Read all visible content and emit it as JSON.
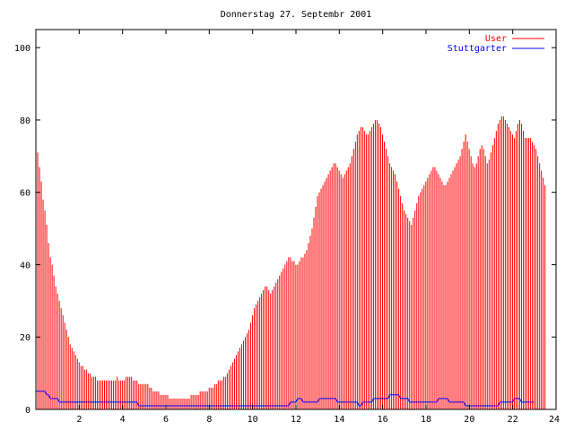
{
  "chart_data": {
    "type": "bar",
    "title": "Donnerstag 27. Septembr 2001",
    "xlim": [
      0,
      24
    ],
    "ylim": [
      0,
      105
    ],
    "x_ticks": [
      2,
      4,
      6,
      8,
      10,
      12,
      14,
      16,
      18,
      20,
      22,
      24
    ],
    "y_ticks": [
      0,
      20,
      40,
      60,
      80,
      100
    ],
    "legend_position": "top-right",
    "grid": false,
    "series": [
      {
        "name": "User",
        "style": "impulses",
        "color": "#ff0000",
        "x_step_hours": 0.0833,
        "values": [
          75,
          71,
          67,
          63,
          58,
          55,
          51,
          46,
          42,
          40,
          37,
          34,
          32,
          30,
          28,
          26,
          24,
          22,
          20,
          18,
          17,
          16,
          15,
          14,
          13,
          12,
          12,
          11,
          11,
          10,
          10,
          9,
          9,
          9,
          8,
          8,
          8,
          8,
          8,
          8,
          8,
          8,
          8,
          8,
          8,
          9,
          8,
          8,
          8,
          8,
          9,
          9,
          9,
          9,
          8,
          8,
          8,
          7,
          7,
          7,
          7,
          7,
          7,
          6,
          6,
          5,
          5,
          5,
          5,
          4,
          4,
          4,
          4,
          4,
          3,
          3,
          3,
          3,
          3,
          3,
          3,
          3,
          3,
          3,
          3,
          3,
          4,
          4,
          4,
          4,
          4,
          5,
          5,
          5,
          5,
          5,
          6,
          6,
          6,
          7,
          7,
          8,
          8,
          8,
          9,
          9,
          10,
          11,
          12,
          13,
          14,
          15,
          16,
          17,
          18,
          19,
          20,
          21,
          22,
          24,
          26,
          28,
          29,
          30,
          31,
          32,
          33,
          34,
          34,
          33,
          32,
          33,
          34,
          35,
          36,
          37,
          38,
          39,
          40,
          41,
          42,
          42,
          41,
          41,
          40,
          40,
          41,
          42,
          42,
          43,
          44,
          46,
          48,
          50,
          53,
          56,
          59,
          60,
          61,
          62,
          63,
          64,
          65,
          66,
          67,
          68,
          68,
          67,
          66,
          65,
          64,
          65,
          66,
          67,
          68,
          70,
          72,
          74,
          76,
          77,
          78,
          78,
          77,
          76,
          76,
          77,
          78,
          79,
          80,
          80,
          79,
          78,
          76,
          74,
          72,
          70,
          68,
          67,
          66,
          65,
          63,
          61,
          59,
          57,
          55,
          54,
          53,
          52,
          51,
          53,
          55,
          57,
          59,
          60,
          61,
          62,
          63,
          64,
          65,
          66,
          67,
          67,
          66,
          65,
          64,
          63,
          62,
          62,
          63,
          64,
          65,
          66,
          67,
          68,
          69,
          70,
          72,
          74,
          76,
          74,
          72,
          70,
          68,
          67,
          68,
          70,
          72,
          73,
          72,
          70,
          68,
          69,
          71,
          73,
          75,
          77,
          79,
          80,
          81,
          81,
          80,
          79,
          78,
          77,
          76,
          75,
          77,
          79,
          80,
          79,
          77,
          75,
          75,
          75,
          75,
          74,
          73,
          72,
          70,
          68,
          66,
          64,
          62
        ]
      },
      {
        "name": "Stuttgarter",
        "style": "lines",
        "color": "#0000ff",
        "x_step_hours": 0.0833,
        "values": [
          5,
          5,
          5,
          5,
          5,
          5,
          4,
          4,
          3,
          3,
          3,
          3,
          3,
          2,
          2,
          2,
          2,
          2,
          2,
          2,
          2,
          2,
          2,
          2,
          2,
          2,
          2,
          2,
          2,
          2,
          2,
          2,
          2,
          2,
          2,
          2,
          2,
          2,
          2,
          2,
          2,
          2,
          2,
          2,
          2,
          2,
          2,
          2,
          2,
          2,
          2,
          2,
          2,
          2,
          2,
          2,
          2,
          1,
          1,
          1,
          1,
          1,
          1,
          1,
          1,
          1,
          1,
          1,
          1,
          1,
          1,
          1,
          1,
          1,
          1,
          1,
          1,
          1,
          1,
          1,
          1,
          1,
          1,
          1,
          1,
          1,
          1,
          1,
          1,
          1,
          1,
          1,
          1,
          1,
          1,
          1,
          1,
          1,
          1,
          1,
          1,
          1,
          1,
          1,
          1,
          1,
          1,
          1,
          1,
          1,
          1,
          1,
          1,
          1,
          1,
          1,
          1,
          1,
          1,
          1,
          1,
          1,
          1,
          1,
          1,
          1,
          1,
          1,
          1,
          1,
          1,
          1,
          1,
          1,
          1,
          1,
          1,
          1,
          1,
          1,
          1,
          2,
          2,
          2,
          2,
          3,
          3,
          3,
          2,
          2,
          2,
          2,
          2,
          2,
          2,
          2,
          2,
          3,
          3,
          3,
          3,
          3,
          3,
          3,
          3,
          3,
          3,
          2,
          2,
          2,
          2,
          2,
          2,
          2,
          2,
          2,
          2,
          2,
          2,
          1,
          1,
          2,
          2,
          2,
          2,
          2,
          2,
          3,
          3,
          3,
          3,
          3,
          3,
          3,
          3,
          3,
          4,
          4,
          4,
          4,
          4,
          4,
          3,
          3,
          3,
          3,
          3,
          2,
          2,
          2,
          2,
          2,
          2,
          2,
          2,
          2,
          2,
          2,
          2,
          2,
          2,
          2,
          2,
          3,
          3,
          3,
          3,
          3,
          3,
          2,
          2,
          2,
          2,
          2,
          2,
          2,
          2,
          2,
          1,
          1,
          1,
          1,
          1,
          1,
          1,
          1,
          1,
          1,
          1,
          1,
          1,
          1,
          1,
          1,
          1,
          1,
          1,
          2,
          2,
          2,
          2,
          2,
          2,
          2,
          2,
          3,
          3,
          3,
          3,
          2,
          2,
          2,
          2,
          2,
          2,
          2,
          2
        ]
      }
    ]
  }
}
